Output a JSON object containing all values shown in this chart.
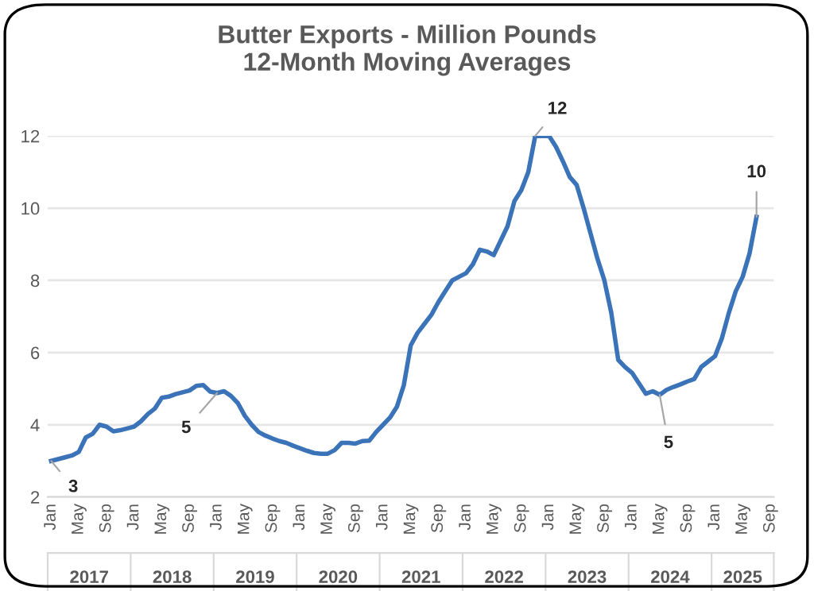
{
  "chart_data": {
    "type": "line",
    "title": "Butter Exports - Million Pounds\n12-Month Moving Averages",
    "categories": [
      "Jan",
      null,
      null,
      null,
      "May",
      null,
      null,
      null,
      "Sep",
      null,
      null,
      null,
      "Jan",
      null,
      null,
      null,
      "May",
      null,
      null,
      null,
      "Sep",
      null,
      null,
      null,
      "Jan",
      null,
      null,
      null,
      "May",
      null,
      null,
      null,
      "Sep",
      null,
      null,
      null,
      "Jan",
      null,
      null,
      null,
      "May",
      null,
      null,
      null,
      "Sep",
      null,
      null,
      null,
      "Jan",
      null,
      null,
      null,
      "May",
      null,
      null,
      null,
      "Sep",
      null,
      null,
      null,
      "Jan",
      null,
      null,
      null,
      "May",
      null,
      null,
      null,
      "Sep",
      null,
      null,
      null,
      "Jan",
      null,
      null,
      null,
      "May",
      null,
      null,
      null,
      "Sep",
      null,
      null,
      null,
      "Jan",
      null,
      null,
      null,
      "May",
      null,
      null,
      null,
      "Sep",
      null,
      null,
      null,
      "Jan",
      null,
      null,
      null,
      "May",
      null,
      null,
      null,
      "Sep"
    ],
    "series": [
      {
        "color": "#3b73b9",
        "values": [
          3.0,
          3.05,
          3.1,
          3.15,
          3.25,
          3.65,
          3.75,
          4.0,
          3.95,
          3.82,
          3.85,
          3.9,
          3.95,
          4.1,
          4.3,
          4.45,
          4.75,
          4.78,
          4.85,
          4.9,
          4.95,
          5.08,
          5.1,
          4.92,
          4.88,
          4.93,
          4.8,
          4.6,
          4.25,
          4.0,
          3.8,
          3.7,
          3.62,
          3.55,
          3.5,
          3.42,
          3.35,
          3.28,
          3.22,
          3.2,
          3.2,
          3.3,
          3.5,
          3.5,
          3.48,
          3.55,
          3.56,
          3.8,
          4.0,
          4.2,
          4.5,
          5.1,
          6.2,
          6.55,
          6.8,
          7.05,
          7.4,
          7.7,
          8.0,
          8.1,
          8.2,
          8.45,
          8.85,
          8.8,
          8.7,
          9.1,
          9.5,
          10.2,
          10.5,
          11.0,
          12.0,
          12.0,
          12.0,
          11.7,
          11.3,
          10.86,
          10.64,
          10.0,
          9.3,
          8.6,
          8.0,
          7.1,
          5.8,
          5.6,
          5.44,
          5.15,
          4.86,
          4.93,
          4.83,
          4.97,
          5.05,
          5.12,
          5.2,
          5.27,
          5.6,
          5.75,
          5.9,
          6.4,
          7.1,
          7.7,
          8.1,
          8.75,
          9.76,
          null,
          null
        ],
        "value_labels": [
          "3",
          null,
          null,
          null,
          null,
          null,
          null,
          null,
          null,
          null,
          null,
          null,
          null,
          null,
          null,
          null,
          null,
          null,
          null,
          null,
          null,
          null,
          null,
          null,
          "5",
          null,
          null,
          null,
          null,
          null,
          null,
          null,
          null,
          null,
          null,
          null,
          null,
          null,
          null,
          null,
          null,
          null,
          null,
          null,
          null,
          null,
          null,
          null,
          null,
          null,
          null,
          null,
          null,
          null,
          null,
          null,
          null,
          null,
          null,
          null,
          null,
          null,
          null,
          null,
          null,
          null,
          null,
          null,
          null,
          null,
          "12",
          null,
          null,
          null,
          null,
          null,
          null,
          null,
          null,
          null,
          null,
          null,
          null,
          null,
          null,
          null,
          null,
          null,
          "5",
          null,
          null,
          null,
          null,
          null,
          null,
          null,
          null,
          null,
          null,
          null,
          null,
          null,
          "10",
          null,
          null
        ]
      }
    ],
    "annotations": [
      "2017",
      "2018",
      "2019",
      "2020",
      "2021",
      "2022",
      "2023",
      "2024",
      "2025"
    ],
    "ylim": [
      2,
      12
    ],
    "yticks": [
      2,
      4,
      6,
      8,
      10,
      12
    ],
    "grid": "y",
    "marker": "none",
    "line_style": "solid"
  }
}
